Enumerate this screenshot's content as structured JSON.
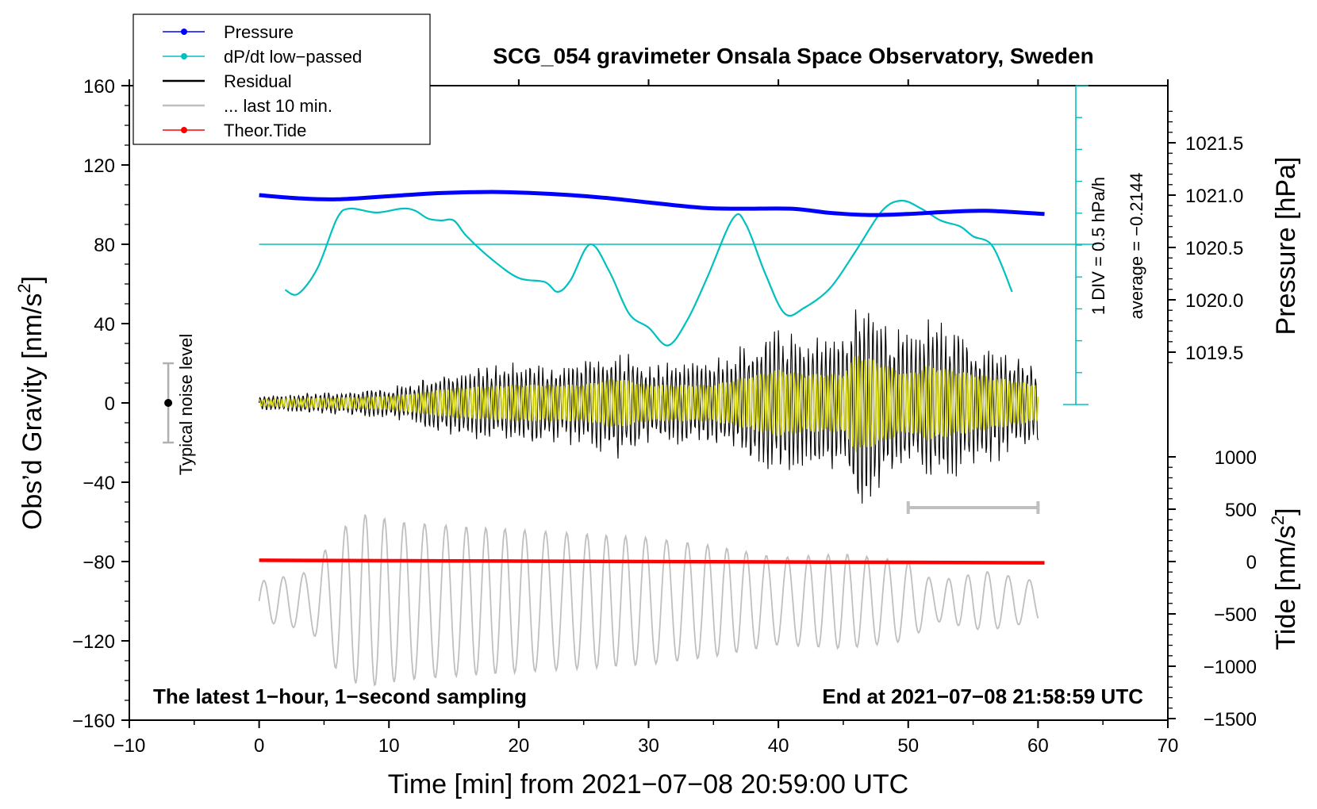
{
  "chart_data": {
    "type": "line",
    "title": "SCG_054 gravimeter Onsala Space Observatory, Sweden",
    "xlabel": "Time [min] from 2021−07−08 20:59:00 UTC",
    "xlim": [
      -10,
      70
    ],
    "xticks": [
      "−10",
      "0",
      "10",
      "20",
      "30",
      "40",
      "50",
      "60",
      "70"
    ],
    "ylabel_left_prefix": "Obs’d Gravity [nm/s",
    "ylabel_left_sup": "2",
    "ylabel_left_suffix": "]",
    "ylim_left": [
      -160,
      160
    ],
    "yticks_left": [
      "160",
      "120",
      "80",
      "40",
      "0",
      "−40",
      "−80",
      "−120",
      "−160"
    ],
    "ylabel_pressure": "Pressure [hPa]",
    "pressure_ticks": [
      "1021.5",
      "1021.0",
      "1020.5",
      "1020.0",
      "1019.5"
    ],
    "ylabel_tide_prefix": "Tide [nm/s",
    "ylabel_tide_sup": "2",
    "ylabel_tide_suffix": "]",
    "tide_ticks": [
      "1000",
      "500",
      "0",
      "−500",
      "−1000",
      "−1500"
    ],
    "legend": [
      {
        "label": "Pressure",
        "color": "#0000ff",
        "style": "line-dot"
      },
      {
        "label": "dP/dt low−passed",
        "color": "#00c0c0",
        "style": "line-dot"
      },
      {
        "label": "Residual",
        "color": "#000000",
        "style": "line"
      },
      {
        "label": "... last 10 min.",
        "color": "#bfbfbf",
        "style": "line"
      },
      {
        "label": "Theor.Tide",
        "color": "#ff0000",
        "style": "line-dot"
      }
    ],
    "legend_position": "top-left",
    "dpdt_scale_label": "1 DIV = 0.5 hPa/h",
    "dpdt_average_label": "average = −0.2144",
    "noise_label": "Typical noise level",
    "noise_level": [
      -20,
      20
    ],
    "footer_left": "The latest 1−hour, 1−second sampling",
    "footer_right": "End at 2021−07−08 21:58:59 UTC",
    "last10_bracket_min": [
      50,
      60
    ],
    "series": [
      {
        "name": "Pressure",
        "axis": "pressure_hPa",
        "color": "#0000ff",
        "x": [
          0,
          3,
          6,
          10,
          14,
          18,
          21,
          24,
          27,
          30,
          34,
          37,
          41,
          44,
          47,
          50,
          53,
          56,
          60.5
        ],
        "y": [
          1021.0,
          1020.97,
          1020.96,
          1020.99,
          1021.02,
          1021.03,
          1021.02,
          1021.0,
          1020.97,
          1020.93,
          1020.88,
          1020.87,
          1020.87,
          1020.83,
          1020.81,
          1020.82,
          1020.84,
          1020.85,
          1020.82
        ]
      },
      {
        "name": "dP/dt low−passed",
        "axis": "gravity_display",
        "color": "#00c0c0",
        "x": [
          2,
          3,
          4.5,
          6,
          7,
          9,
          11,
          12,
          13,
          14,
          15,
          16,
          18,
          20,
          22,
          23,
          24,
          25.5,
          27,
          28.5,
          30,
          31.5,
          33,
          34.5,
          36.5,
          37.5,
          39,
          40.5,
          42,
          44,
          46,
          48,
          49.5,
          51,
          52.5,
          54,
          55,
          56.5,
          58
        ],
        "y": [
          57,
          55,
          68,
          93,
          98,
          96,
          98,
          97,
          93,
          92,
          92,
          84,
          72,
          63,
          61,
          56,
          62,
          80,
          66,
          45,
          38,
          29,
          42,
          63,
          93,
          90,
          65,
          45,
          48,
          58,
          77,
          97,
          102,
          98,
          92,
          89,
          84,
          79,
          56
        ]
      },
      {
        "name": "Residual",
        "axis": "gravity_nm_s2",
        "color": "#000000",
        "x": [
          0,
          5,
          10,
          15,
          20,
          25,
          27.5,
          30,
          35,
          40,
          42,
          45,
          46,
          50,
          51.5,
          55,
          60
        ],
        "amplitude": [
          4,
          6,
          8,
          18,
          22,
          22,
          30,
          22,
          22,
          40,
          35,
          35,
          60,
          35,
          45,
          35,
          22
        ],
        "center": 0
      },
      {
        "name": "... last 10 min.",
        "axis": "gravity_display",
        "color": "#bfbfbf",
        "x": [
          0,
          4,
          6,
          8,
          11,
          15,
          20,
          25,
          30,
          35,
          40,
          45,
          50,
          52,
          56,
          60
        ],
        "amplitude": [
          10,
          15,
          35,
          44,
          40,
          38,
          36,
          34,
          32,
          28,
          22,
          24,
          20,
          10,
          15,
          10
        ],
        "center": -100
      },
      {
        "name": "Theor.Tide",
        "axis": "tide_nm_s2",
        "color": "#ff0000",
        "x": [
          0,
          10,
          20,
          30,
          40,
          50,
          60.5
        ],
        "y": [
          12,
          8,
          4,
          0,
          -4,
          -8,
          -12
        ]
      }
    ]
  }
}
